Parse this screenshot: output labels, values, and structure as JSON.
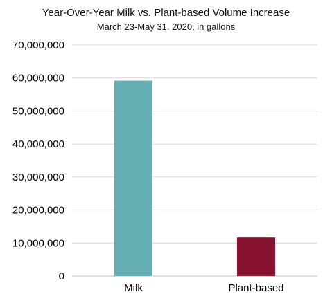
{
  "chart_data": {
    "type": "bar",
    "title": "Year-Over-Year Milk vs. Plant-based Volume Increase",
    "subtitle": "March 23-May 31, 2020, in gallons",
    "categories": [
      "Milk",
      "Plant-based"
    ],
    "values": [
      59200000,
      11700000
    ],
    "bar_colors": [
      "#65AEB3",
      "#87122F"
    ],
    "xlabel": "",
    "ylabel": "",
    "ylim": [
      0,
      70000000
    ],
    "yticks": [
      0,
      10000000,
      20000000,
      30000000,
      40000000,
      50000000,
      60000000,
      70000000
    ],
    "ytick_labels": [
      "0",
      "10,000,000",
      "20,000,000",
      "30,000,000",
      "40,000,000",
      "50,000,000",
      "60,000,000",
      "70,000,000"
    ],
    "grid": true,
    "legend": "none"
  }
}
